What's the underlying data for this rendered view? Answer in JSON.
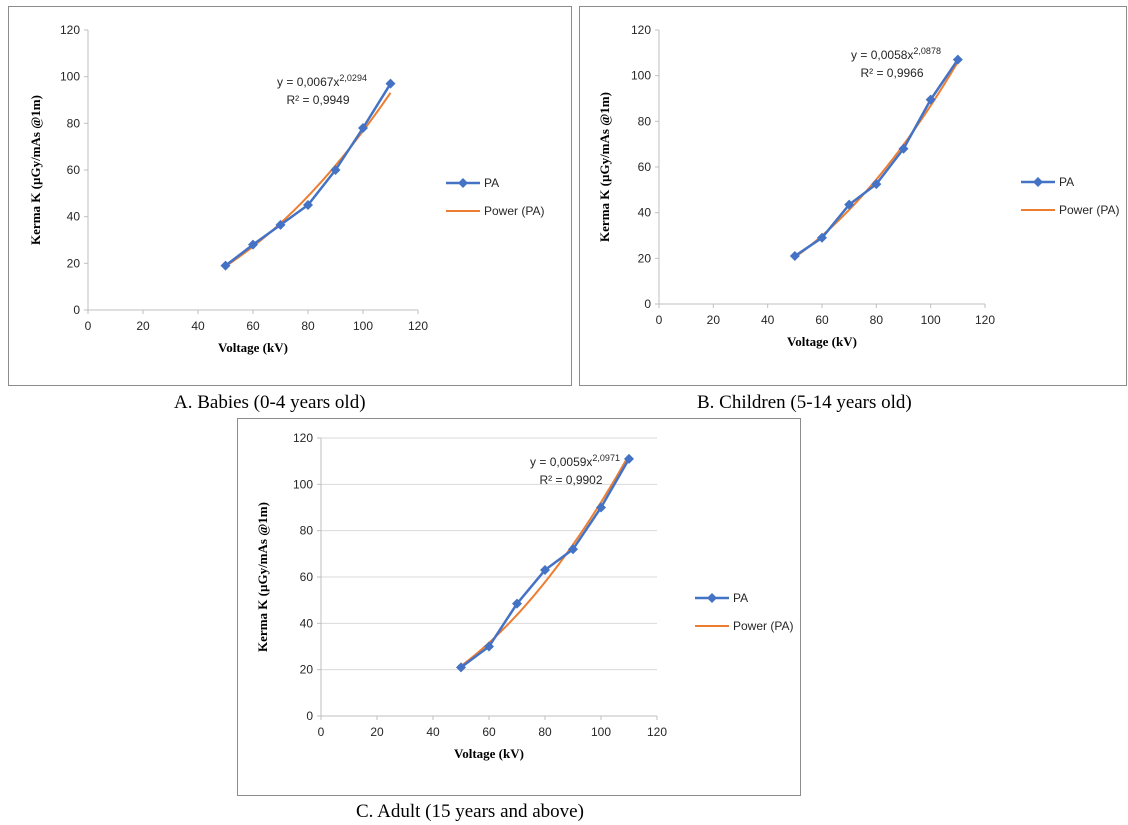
{
  "chart_data": [
    {
      "type": "line",
      "caption": "A.   Babies (0-4 years old)",
      "xlabel": "Voltage (kV)",
      "ylabel": "Kerma K (µGy/mAs @1m)",
      "xlim": [
        0,
        120
      ],
      "ylim": [
        0,
        120
      ],
      "xticks": [
        0,
        20,
        40,
        60,
        80,
        100,
        120
      ],
      "yticks": [
        0,
        20,
        40,
        60,
        80,
        100,
        120
      ],
      "grid": false,
      "legend_position": "right",
      "equation": {
        "base": "y = 0,0067x",
        "exponent": "2,0294",
        "r2": "R² = 0,9949"
      },
      "fit": {
        "coef": 0.0067,
        "power": 2.0294
      },
      "series": [
        {
          "name": "PA",
          "color": "#4472c4",
          "marker": "diamond",
          "x": [
            50,
            60,
            70,
            80,
            90,
            100,
            110
          ],
          "y": [
            19,
            28,
            36.5,
            45,
            60,
            78,
            97
          ]
        },
        {
          "name": "Power (PA)",
          "color": "#ed7d31",
          "trendline": "power"
        }
      ]
    },
    {
      "type": "line",
      "caption": "B. Children (5-14 years old)",
      "xlabel": "Voltage (kV)",
      "ylabel": "Kerma K (µGy/mAs @1m)",
      "xlim": [
        0,
        120
      ],
      "ylim": [
        0,
        120
      ],
      "xticks": [
        0,
        20,
        40,
        60,
        80,
        100,
        120
      ],
      "yticks": [
        0,
        20,
        40,
        60,
        80,
        100,
        120
      ],
      "grid": false,
      "legend_position": "right",
      "equation": {
        "base": "y = 0,0058x",
        "exponent": "2,0878",
        "r2": "R² = 0,9966"
      },
      "fit": {
        "coef": 0.0058,
        "power": 2.0878
      },
      "series": [
        {
          "name": "PA",
          "color": "#4472c4",
          "marker": "diamond",
          "x": [
            50,
            60,
            70,
            80,
            90,
            100,
            110
          ],
          "y": [
            21,
            29,
            43.5,
            52.5,
            68,
            89.5,
            107
          ]
        },
        {
          "name": "Power (PA)",
          "color": "#ed7d31",
          "trendline": "power"
        }
      ]
    },
    {
      "type": "line",
      "caption": "C. Adult (15 years and above)",
      "xlabel": "Voltage (kV)",
      "ylabel": "Kerma K (µGy/mAs @1m)",
      "xlim": [
        0,
        120
      ],
      "ylim": [
        0,
        120
      ],
      "xticks": [
        0,
        20,
        40,
        60,
        80,
        100,
        120
      ],
      "yticks": [
        0,
        20,
        40,
        60,
        80,
        100,
        120
      ],
      "grid": true,
      "legend_position": "right",
      "equation": {
        "base": "y = 0,0059x",
        "exponent": "2,0971",
        "r2": "R² = 0,9902"
      },
      "fit": {
        "coef": 0.0059,
        "power": 2.0971
      },
      "series": [
        {
          "name": "PA",
          "color": "#4472c4",
          "marker": "diamond",
          "x": [
            50,
            60,
            70,
            80,
            90,
            100,
            110
          ],
          "y": [
            21,
            30,
            48.5,
            63,
            72,
            90,
            111
          ]
        },
        {
          "name": "Power (PA)",
          "color": "#ed7d31",
          "trendline": "power"
        }
      ]
    }
  ]
}
